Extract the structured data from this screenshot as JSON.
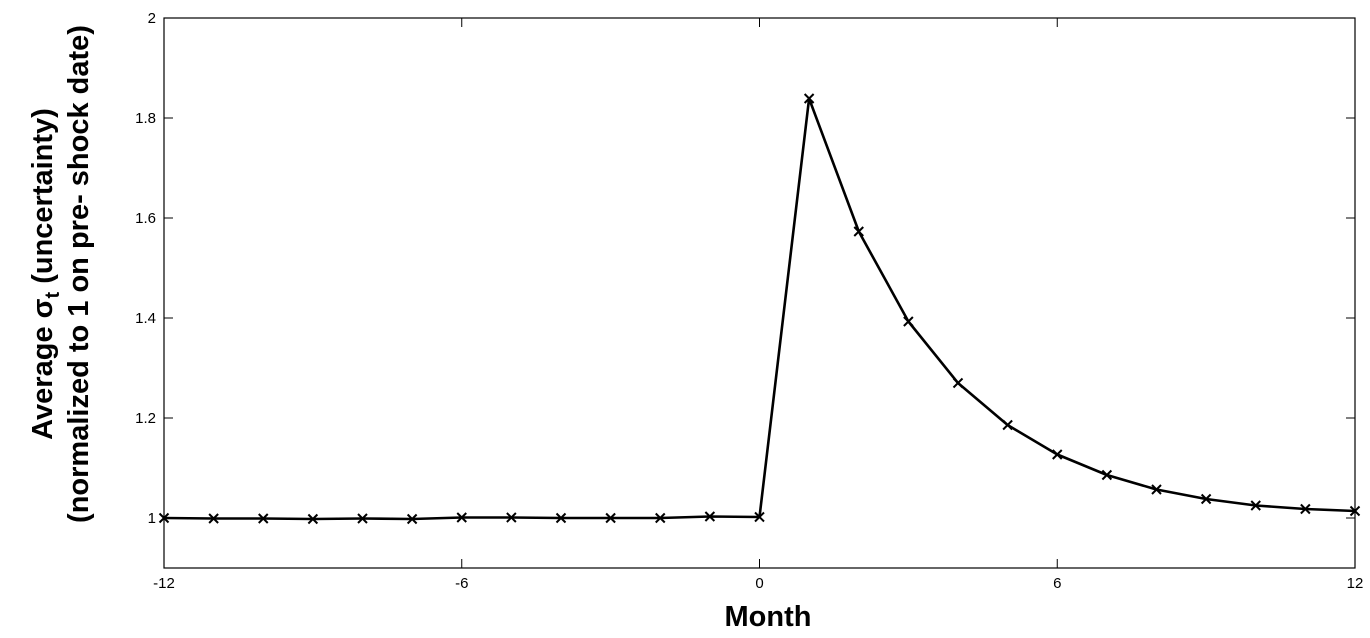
{
  "chart_data": {
    "type": "line",
    "xlabel": "Month",
    "ylabel": {
      "line1_before": "Average σ",
      "line1_subscript": "t",
      "line1_after": " (uncertainty)",
      "line2": "(normalized to 1 on pre- shock date)"
    },
    "xlim": [
      -12,
      12
    ],
    "ylim": [
      0.9,
      2.0
    ],
    "xticks": [
      -12,
      -6,
      0,
      6,
      12
    ],
    "yticks": [
      1,
      1.2,
      1.4,
      1.6,
      1.8,
      2
    ],
    "ytick_labels": [
      "1",
      "1.2",
      "1.4",
      "1.6",
      "1.8",
      "2"
    ],
    "grid": false,
    "marker": "x",
    "line_color": "#000000",
    "x": [
      -12,
      -11,
      -10,
      -9,
      -8,
      -7,
      -6,
      -5,
      -4,
      -3,
      -2,
      -1,
      0,
      1,
      2,
      3,
      4,
      5,
      6,
      7,
      8,
      9,
      10,
      11,
      12
    ],
    "y": [
      1.0,
      0.999,
      0.999,
      0.998,
      0.999,
      0.998,
      1.001,
      1.001,
      1.0,
      1.0,
      1.0,
      1.003,
      1.002,
      1.839,
      1.573,
      1.393,
      1.27,
      1.186,
      1.127,
      1.086,
      1.057,
      1.038,
      1.025,
      1.018,
      1.014
    ]
  }
}
